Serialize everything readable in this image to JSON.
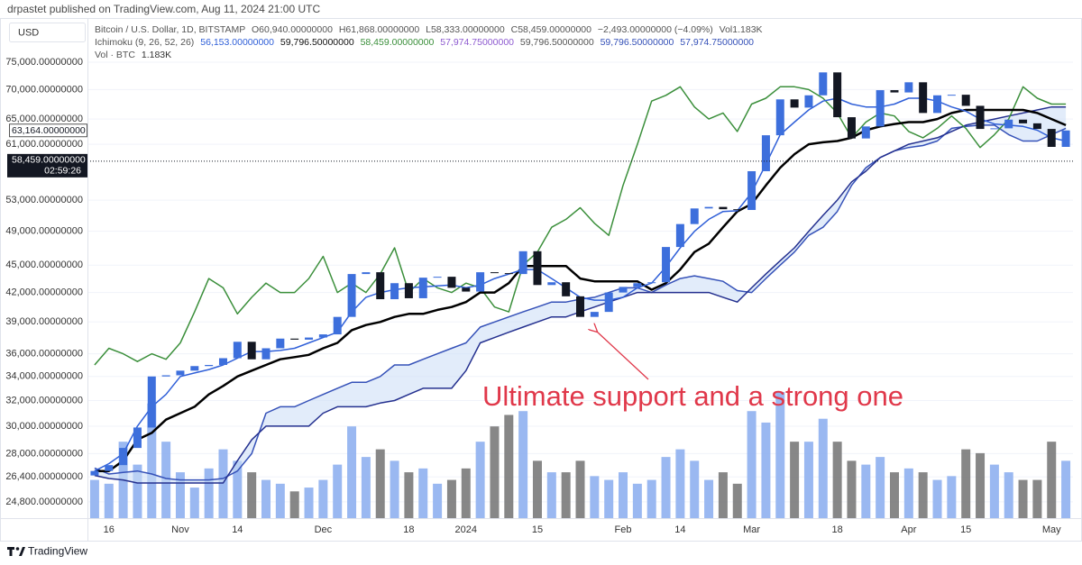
{
  "header": {
    "publisher": "drpastet published on TradingView.com, Aug 11, 2024 21:00 UTC",
    "currency": "USD"
  },
  "legend": {
    "line1": [
      "Bitcoin / U.S. Dollar, 1D, BITSTAMP",
      "O60,940.00000000",
      "H61,868.00000000",
      "L58,333.00000000",
      "C58,459.00000000",
      "−2,493.00000000 (−4.09%)",
      "Vol1.183K"
    ],
    "line2": [
      "Ichimoku (9, 26, 52, 26)",
      "56,153.00000000",
      "59,796.50000000",
      "58,459.00000000",
      "57,974.75000000",
      "59,796.50000000",
      "59,796.50000000",
      "57,974.75000000"
    ],
    "line3": [
      "Vol · BTC",
      "1.183K"
    ]
  },
  "chart_data": {
    "type": "candlestick",
    "log_scale": true,
    "grid": true,
    "up_color": "#3d6fdc",
    "down_color": "#131722",
    "categories": [
      null,
      "16",
      null,
      null,
      null,
      null,
      "Nov",
      null,
      null,
      null,
      "14",
      null,
      null,
      null,
      null,
      null,
      "Dec",
      null,
      null,
      null,
      null,
      null,
      "18",
      null,
      null,
      null,
      "2024",
      null,
      null,
      null,
      null,
      "15",
      null,
      null,
      null,
      null,
      null,
      "Feb",
      null,
      null,
      null,
      "14",
      null,
      null,
      null,
      null,
      "Mar",
      null,
      null,
      null,
      null,
      null,
      "18",
      null,
      null,
      null,
      null,
      "Apr",
      null,
      null,
      null,
      "15",
      null,
      null,
      null,
      null,
      null,
      "May",
      null
    ],
    "open": [
      26500,
      26800,
      27200,
      28400,
      29900,
      34000,
      34100,
      34500,
      34900,
      35000,
      35600,
      37100,
      35500,
      36500,
      37400,
      37300,
      37500,
      37800,
      39500,
      44000,
      44200,
      41300,
      43000,
      41400,
      43600,
      43700,
      42500,
      42100,
      44200,
      44100,
      44000,
      46600,
      42800,
      43100,
      41600,
      39500,
      40000,
      42000,
      42600,
      43000,
      43100,
      47100,
      49900,
      51900,
      52100,
      51800,
      51700,
      57000,
      62400,
      68300,
      66900,
      69000,
      73100,
      65300,
      61900,
      63800,
      69900,
      69500,
      71300,
      66000,
      69000,
      69100,
      67200,
      63400,
      63500,
      64900,
      64300,
      63400,
      60600
    ],
    "close": [
      26800,
      27200,
      28400,
      29900,
      34000,
      34100,
      34500,
      34900,
      35000,
      35600,
      37100,
      35500,
      36500,
      37400,
      37300,
      37500,
      37800,
      39500,
      44000,
      44200,
      41300,
      43000,
      41400,
      43600,
      43700,
      42500,
      42100,
      44200,
      44100,
      44000,
      46600,
      42800,
      43100,
      41600,
      39500,
      40000,
      42000,
      42600,
      43000,
      43100,
      47100,
      49900,
      51900,
      52100,
      51800,
      51700,
      57000,
      62400,
      68300,
      66900,
      69000,
      73100,
      65300,
      61900,
      63800,
      69900,
      69500,
      71300,
      66000,
      69000,
      69100,
      67200,
      63400,
      63500,
      64900,
      64300,
      63400,
      60600,
      63164
    ],
    "ylim": [
      23800,
      79200
    ],
    "yticks": [
      {
        "value": 75000,
        "label": "75,000.00000000"
      },
      {
        "value": 70000,
        "label": "70,000.00000000"
      },
      {
        "value": 65000,
        "label": "65,000.00000000"
      },
      {
        "value": 61000,
        "label": "61,000.00000000"
      },
      {
        "value": 53000,
        "label": "53,000.00000000"
      },
      {
        "value": 49000,
        "label": "49,000.00000000"
      },
      {
        "value": 45000,
        "label": "45,000.00000000"
      },
      {
        "value": 42000,
        "label": "42,000.00000000"
      },
      {
        "value": 39000,
        "label": "39,000.00000000"
      },
      {
        "value": 36000,
        "label": "36,000.00000000"
      },
      {
        "value": 34000,
        "label": "34,000.00000000"
      },
      {
        "value": 32000,
        "label": "32,000.00000000"
      },
      {
        "value": 30000,
        "label": "30,000.00000000"
      },
      {
        "value": 28000,
        "label": "28,000.00000000"
      },
      {
        "value": 26400,
        "label": "26,400.00000000"
      },
      {
        "value": 24800,
        "label": "24,800.00000000"
      }
    ],
    "cloud_color": "#cfe0f7",
    "overlays": [
      {
        "color": "#3b8f3b",
        "line_width": 1.5,
        "values": [
          35000,
          36500,
          36000,
          35300,
          36000,
          35500,
          37000,
          40000,
          43500,
          42500,
          39800,
          41500,
          43000,
          42000,
          42000,
          43500,
          46000,
          42000,
          43000,
          42000,
          44000,
          47000,
          42000,
          43500,
          42500,
          42000,
          43000,
          42500,
          40500,
          40000,
          45000,
          46500,
          49500,
          50500,
          52000,
          50000,
          48500,
          55000,
          61000,
          68000,
          69000,
          70500,
          67000,
          65000,
          66000,
          63000,
          67500,
          68500,
          70500,
          70500,
          70000,
          68500,
          66000,
          62000,
          64500,
          66000,
          65500,
          63000,
          62000,
          63500,
          65500,
          63500,
          60500,
          62500,
          65000,
          70500,
          68500,
          67500,
          67500
        ]
      },
      {
        "color": "#000000",
        "line_width": 2.5,
        "values": [
          26800,
          26800,
          27500,
          29000,
          29500,
          30500,
          31000,
          31500,
          32500,
          33200,
          34000,
          34500,
          35000,
          35500,
          35700,
          35900,
          36500,
          37000,
          38200,
          38700,
          39000,
          39500,
          39800,
          39800,
          40200,
          40500,
          41000,
          42000,
          42000,
          43000,
          44900,
          44900,
          44900,
          44900,
          43500,
          43200,
          43200,
          43200,
          43200,
          42300,
          43000,
          44500,
          46500,
          47500,
          49500,
          51500,
          52500,
          55000,
          57500,
          59500,
          61000,
          61300,
          61500,
          62000,
          63200,
          63800,
          64200,
          64500,
          64500,
          65000,
          66000,
          66500,
          66500,
          66500,
          66500,
          66500,
          66000,
          65000,
          64000
        ]
      },
      {
        "color": "#2f5fd8",
        "line_width": 1.5,
        "values": [
          26800,
          27300,
          28000,
          30000,
          31500,
          32500,
          34000,
          34300,
          34600,
          35000,
          35600,
          36200,
          36200,
          36300,
          36500,
          37000,
          37500,
          38000,
          40000,
          41500,
          42000,
          42300,
          42500,
          42600,
          42700,
          42800,
          42500,
          42800,
          43500,
          44000,
          44500,
          44500,
          43500,
          42500,
          41500,
          41200,
          41200,
          41500,
          42500,
          43000,
          44800,
          47000,
          49000,
          50500,
          51500,
          51600,
          54000,
          58000,
          62500,
          64500,
          66500,
          68000,
          68500,
          67500,
          67000,
          67000,
          67500,
          68500,
          68500,
          68000,
          67000,
          66300,
          65000,
          64200,
          64000,
          63800,
          63200,
          62000,
          61500
        ]
      },
      {
        "color": "#3551b8",
        "line_width": 1.5,
        "values": [
          27000,
          26600,
          26700,
          26800,
          26600,
          26300,
          26200,
          26200,
          26200,
          26300,
          26800,
          28000,
          31000,
          31500,
          31500,
          32000,
          32500,
          33000,
          33500,
          33500,
          34000,
          35000,
          35000,
          35500,
          36000,
          36500,
          37000,
          38500,
          39000,
          39500,
          40000,
          40500,
          41000,
          41000,
          41300,
          41500,
          42000,
          42500,
          42500,
          42000,
          42800,
          43500,
          43800,
          43500,
          43200,
          42200,
          42000,
          43500,
          45000,
          46500,
          48500,
          49500,
          51500,
          55000,
          57500,
          59000,
          60000,
          60500,
          60800,
          61500,
          63500,
          63800,
          64000,
          64000,
          62500,
          61500,
          61500,
          62500,
          63500
        ]
      },
      {
        "color": "#24308f",
        "line_width": 1.5,
        "values": [
          26500,
          26300,
          26200,
          26000,
          26000,
          26000,
          26000,
          26000,
          26000,
          26000,
          27500,
          29000,
          30000,
          30000,
          30000,
          30000,
          31000,
          31500,
          31500,
          31500,
          31800,
          32000,
          32500,
          33000,
          33000,
          33000,
          34500,
          37000,
          37500,
          38000,
          38500,
          39000,
          39500,
          39500,
          40000,
          40500,
          41000,
          41500,
          42000,
          42000,
          42000,
          42000,
          42000,
          42000,
          41500,
          41000,
          42500,
          44000,
          45500,
          47000,
          49000,
          51000,
          53000,
          55500,
          57000,
          59000,
          60000,
          61000,
          61500,
          62000,
          63000,
          64000,
          64500,
          65000,
          65500,
          66000,
          66500,
          67000,
          67000
        ]
      }
    ],
    "volume": {
      "up_color": "#8fb0f0",
      "down_color": "#7a7a7a",
      "values": [
        1.0,
        0.9,
        2.0,
        1.4,
        3.0,
        2.0,
        1.2,
        0.8,
        1.3,
        1.8,
        1.5,
        1.2,
        1.0,
        0.9,
        0.7,
        0.8,
        1.0,
        1.4,
        2.4,
        1.6,
        1.8,
        1.5,
        1.2,
        1.3,
        0.9,
        1.0,
        1.3,
        2.0,
        2.4,
        2.7,
        2.8,
        1.5,
        1.2,
        1.2,
        1.5,
        1.1,
        1.0,
        1.2,
        0.9,
        1.0,
        1.6,
        1.8,
        1.5,
        1.0,
        1.2,
        0.9,
        2.8,
        2.5,
        3.3,
        2.0,
        2.0,
        2.6,
        2.0,
        1.5,
        1.4,
        1.6,
        1.2,
        1.3,
        1.2,
        1.0,
        1.1,
        1.8,
        1.7,
        1.4,
        1.2,
        1.0,
        1.0,
        2.0,
        1.5
      ]
    },
    "price_labels": [
      {
        "value": 63164,
        "label": "63,164.00000000"
      },
      {
        "value": 58459,
        "label": "58,459.00000000",
        "countdown": "02:59:26"
      }
    ],
    "annotation": "Ultimate support and a strong one"
  },
  "footer": {
    "brand": "TradingView"
  }
}
